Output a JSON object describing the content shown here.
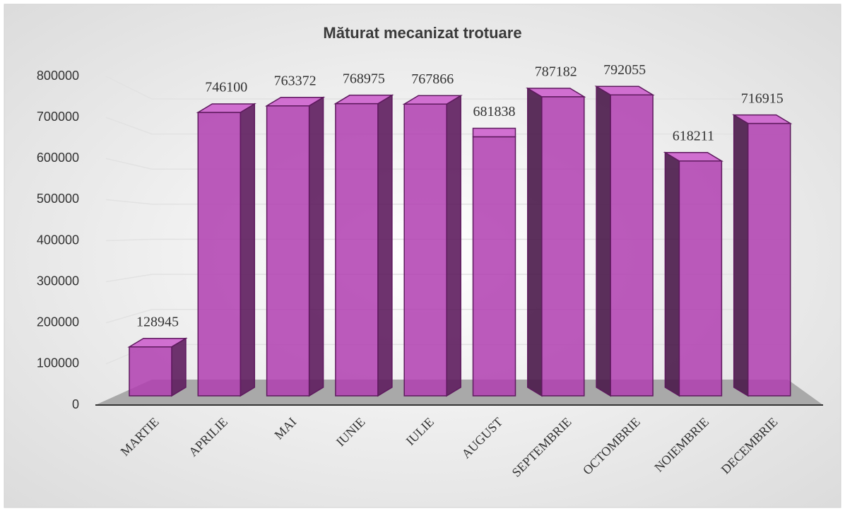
{
  "chart_data": {
    "type": "bar3d",
    "title": "Măturat mecanizat trotuare",
    "categories": [
      "MARTIE",
      "APRILIE",
      "MAI",
      "IUNIE",
      "IULIE",
      "AUGUST",
      "SEPTEMBRIE",
      "OCTOMBRIE",
      "NOIEMBRIE",
      "DECEMBRIE"
    ],
    "values": [
      128945,
      746100,
      763372,
      768975,
      767866,
      681838,
      787182,
      792055,
      618211,
      716915
    ],
    "color": "#b03eb0",
    "ylim": [
      0,
      800000
    ],
    "yticks": [
      0,
      100000,
      200000,
      300000,
      400000,
      500000,
      600000,
      700000,
      800000
    ],
    "grid": true
  }
}
